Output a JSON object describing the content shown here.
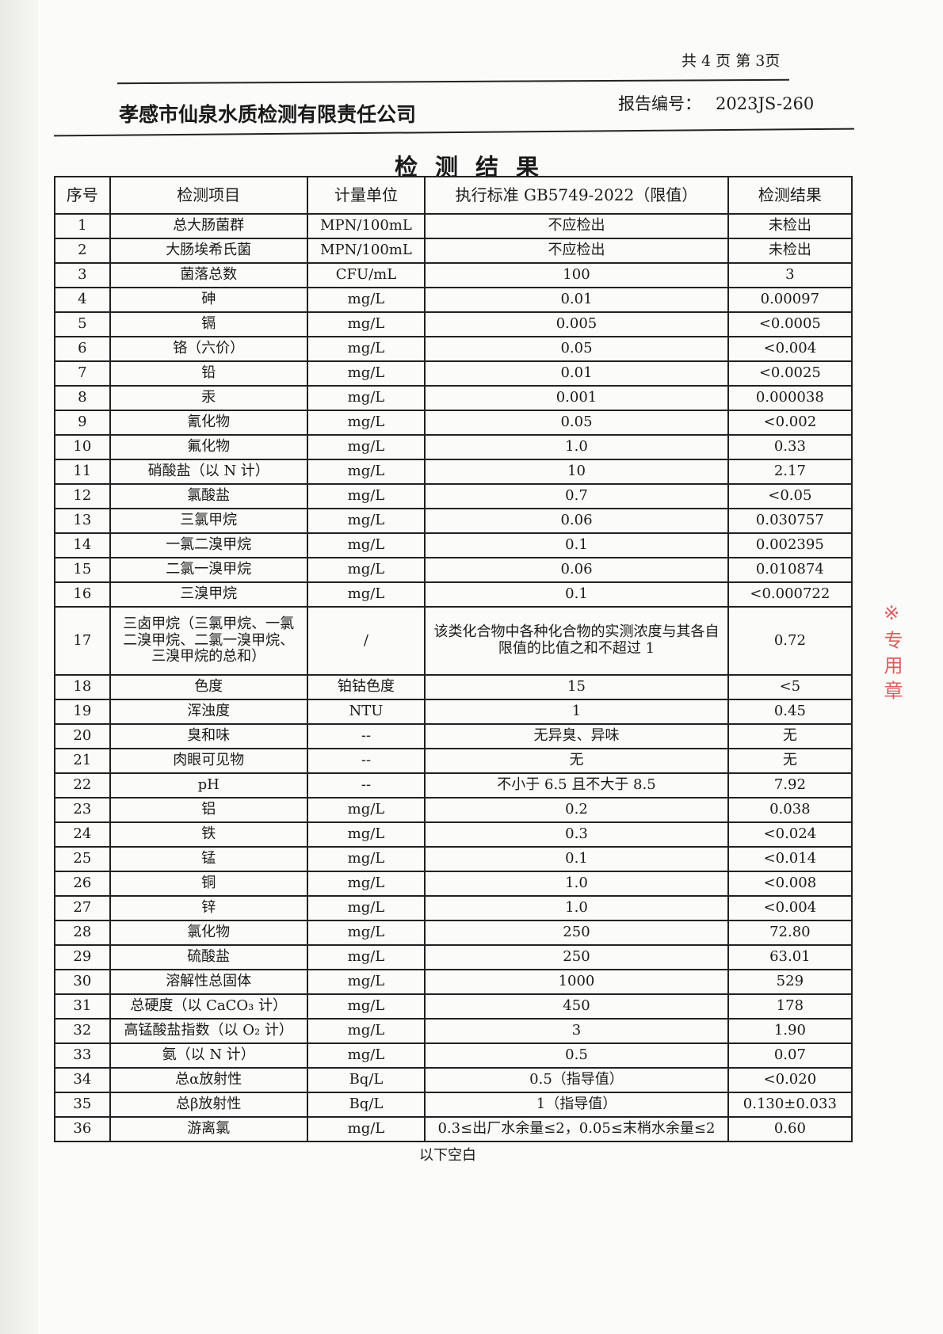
{
  "header": {
    "page_info": "共 4 页  第 3页",
    "company": "孝感市仙泉水质检测有限责任公司",
    "report_no_label": "报告编号：",
    "report_no": "2023JS-260"
  },
  "title": "检测结果",
  "table": {
    "columns": [
      "序号",
      "检测项目",
      "计量单位",
      "执行标准 GB5749-2022（限值）",
      "检测结果"
    ],
    "rows": [
      [
        "1",
        "总大肠菌群",
        "MPN/100mL",
        "不应检出",
        "未检出"
      ],
      [
        "2",
        "大肠埃希氏菌",
        "MPN/100mL",
        "不应检出",
        "未检出"
      ],
      [
        "3",
        "菌落总数",
        "CFU/mL",
        "100",
        "3"
      ],
      [
        "4",
        "砷",
        "mg/L",
        "0.01",
        "0.00097"
      ],
      [
        "5",
        "镉",
        "mg/L",
        "0.005",
        "<0.0005"
      ],
      [
        "6",
        "铬（六价）",
        "mg/L",
        "0.05",
        "<0.004"
      ],
      [
        "7",
        "铅",
        "mg/L",
        "0.01",
        "<0.0025"
      ],
      [
        "8",
        "汞",
        "mg/L",
        "0.001",
        "0.000038"
      ],
      [
        "9",
        "氰化物",
        "mg/L",
        "0.05",
        "<0.002"
      ],
      [
        "10",
        "氟化物",
        "mg/L",
        "1.0",
        "0.33"
      ],
      [
        "11",
        "硝酸盐（以 N 计）",
        "mg/L",
        "10",
        "2.17"
      ],
      [
        "12",
        "氯酸盐",
        "mg/L",
        "0.7",
        "<0.05"
      ],
      [
        "13",
        "三氯甲烷",
        "mg/L",
        "0.06",
        "0.030757"
      ],
      [
        "14",
        "一氯二溴甲烷",
        "mg/L",
        "0.1",
        "0.002395"
      ],
      [
        "15",
        "二氯一溴甲烷",
        "mg/L",
        "0.06",
        "0.010874"
      ],
      [
        "16",
        "三溴甲烷",
        "mg/L",
        "0.1",
        "<0.000722"
      ],
      [
        "17",
        "三卤甲烷（三氯甲烷、一氯二溴甲烷、二氯一溴甲烷、三溴甲烷的总和）",
        "/",
        "该类化合物中各种化合物的实测浓度与其各自限值的比值之和不超过 1",
        "0.72"
      ],
      [
        "18",
        "色度",
        "铂钴色度",
        "15",
        "<5"
      ],
      [
        "19",
        "浑浊度",
        "NTU",
        "1",
        "0.45"
      ],
      [
        "20",
        "臭和味",
        "--",
        "无异臭、异味",
        "无"
      ],
      [
        "21",
        "肉眼可见物",
        "--",
        "无",
        "无"
      ],
      [
        "22",
        "pH",
        "--",
        "不小于 6.5 且不大于 8.5",
        "7.92"
      ],
      [
        "23",
        "铝",
        "mg/L",
        "0.2",
        "0.038"
      ],
      [
        "24",
        "铁",
        "mg/L",
        "0.3",
        "<0.024"
      ],
      [
        "25",
        "锰",
        "mg/L",
        "0.1",
        "<0.014"
      ],
      [
        "26",
        "铜",
        "mg/L",
        "1.0",
        "<0.008"
      ],
      [
        "27",
        "锌",
        "mg/L",
        "1.0",
        "<0.004"
      ],
      [
        "28",
        "氯化物",
        "mg/L",
        "250",
        "72.80"
      ],
      [
        "29",
        "硫酸盐",
        "mg/L",
        "250",
        "63.01"
      ],
      [
        "30",
        "溶解性总固体",
        "mg/L",
        "1000",
        "529"
      ],
      [
        "31",
        "总硬度（以 CaCO₃ 计）",
        "mg/L",
        "450",
        "178"
      ],
      [
        "32",
        "高锰酸盐指数（以 O₂ 计）",
        "mg/L",
        "3",
        "1.90"
      ],
      [
        "33",
        "氨（以 N 计）",
        "mg/L",
        "0.5",
        "0.07"
      ],
      [
        "34",
        "总α放射性",
        "Bq/L",
        "0.5（指导值）",
        "<0.020"
      ],
      [
        "35",
        "总β放射性",
        "Bq/L",
        "1（指导值）",
        "0.130±0.033"
      ],
      [
        "36",
        "游离氯",
        "mg/L",
        "0.3≤出厂水余量≤2，0.05≤末梢水余量≤2",
        "0.60"
      ]
    ]
  },
  "footer": {
    "blank_note": "以下空白"
  },
  "stamp": {
    "text": "检测专用章",
    "color": "#d8262c"
  }
}
